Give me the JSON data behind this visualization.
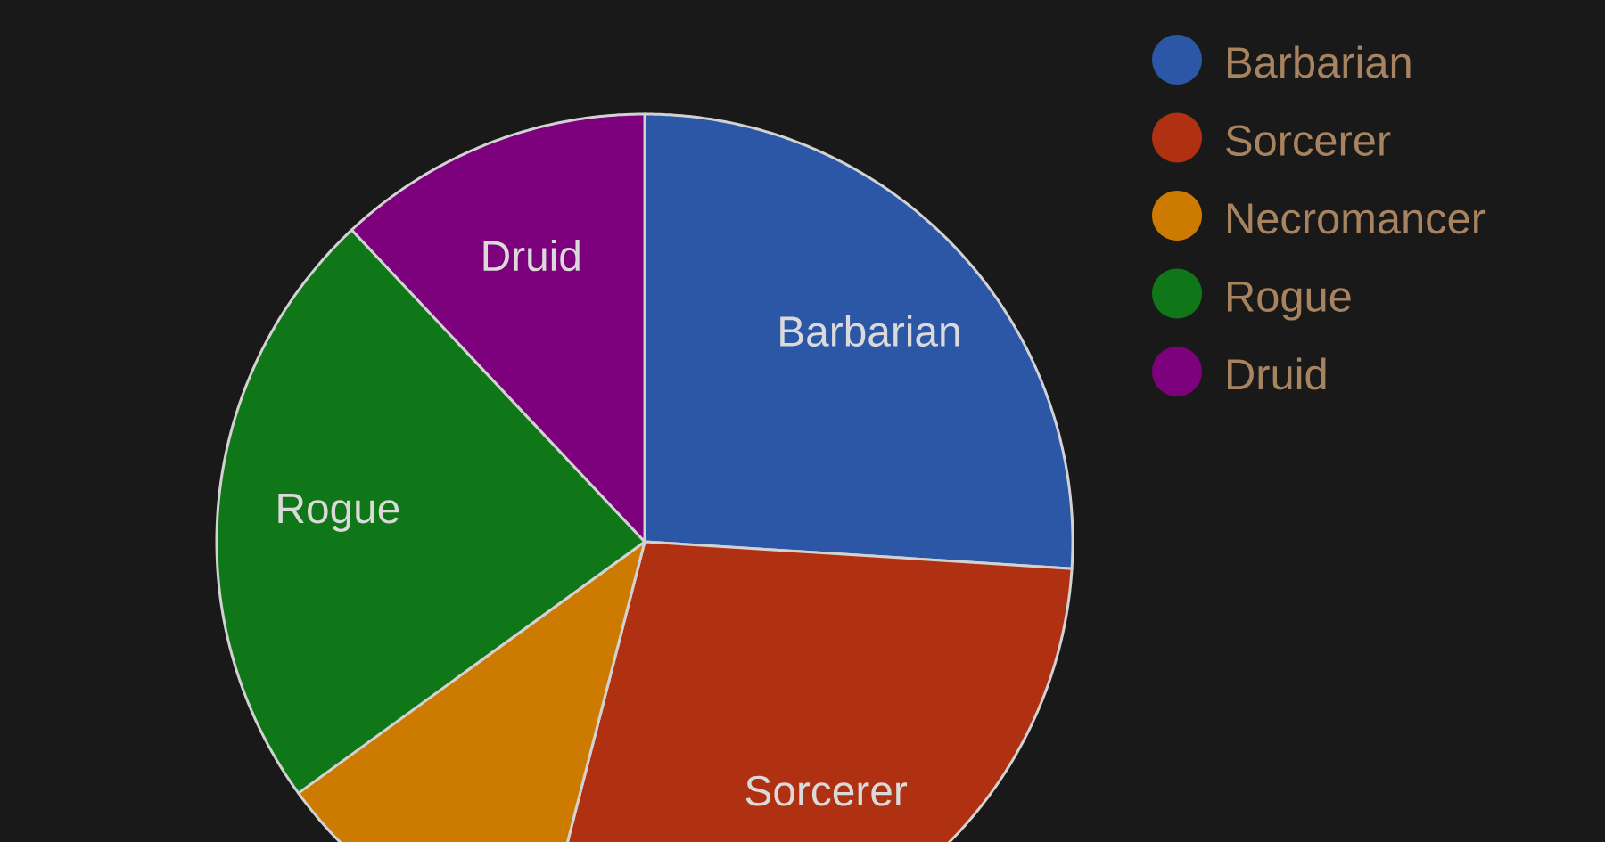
{
  "chart_data": {
    "type": "pie",
    "categories": [
      "Barbarian",
      "Sorcerer",
      "Necromancer",
      "Rogue",
      "Druid"
    ],
    "values": [
      26,
      28,
      11,
      23,
      12
    ],
    "colors": [
      "#2b57a6",
      "#b03012",
      "#cc7a00",
      "#107718",
      "#7d007d"
    ],
    "value_labels": [
      "Barbarian",
      "Sorcerer",
      null,
      "Rogue",
      "Druid"
    ],
    "legend": "top right"
  }
}
